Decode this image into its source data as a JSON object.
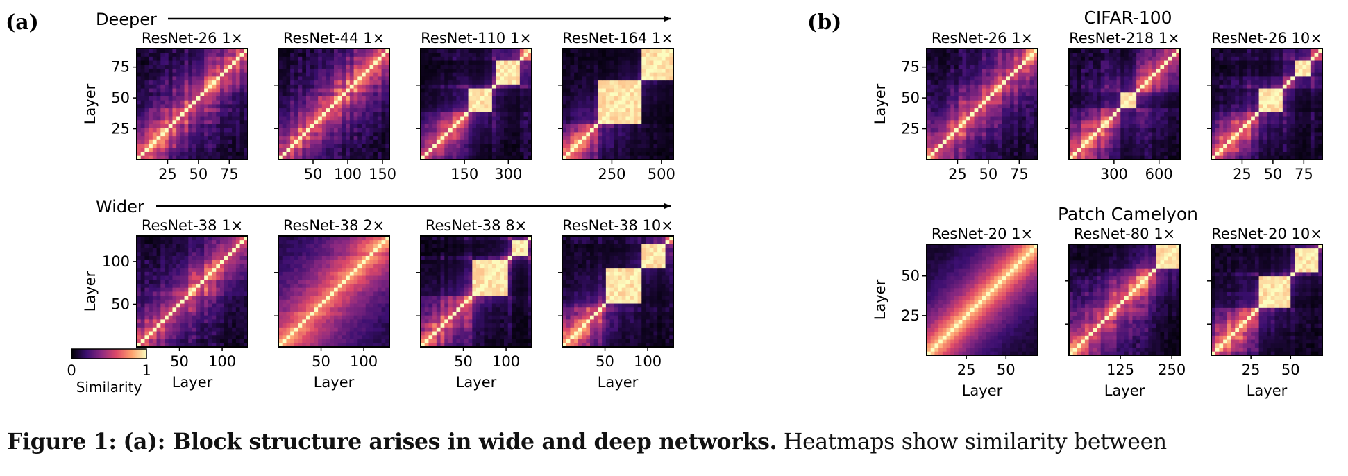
{
  "figure": {
    "panel_a_label": "(a)",
    "panel_b_label": "(b)",
    "deeper_label": "Deeper",
    "wider_label": "Wider",
    "cifar_title": "CIFAR-100",
    "pcam_title": "Patch Camelyon",
    "colorbar": {
      "min_label": "0",
      "max_label": "1",
      "label": "Similarity"
    }
  },
  "caption": {
    "figure_label": "Figure 1:",
    "bold_text": "(a): Block structure arises in wide and deep networks.",
    "text": "Heatmaps show similarity between"
  },
  "chart_data": [
    {
      "type": "heatmap",
      "title": "ResNet-26 1×",
      "ylabel": "Layer",
      "xlabel": "",
      "x_ticks": [
        "25",
        "50",
        "75"
      ],
      "y_ticks": [
        "25",
        "50",
        "75"
      ],
      "n_layers": 90,
      "colorscale": [
        "#000004",
        "#3b0f70",
        "#8c2981",
        "#de4968",
        "#fe9f6d",
        "#fcfdbf"
      ],
      "vmin": 0,
      "vmax": 1
    },
    {
      "type": "heatmap",
      "title": "ResNet-44 1×",
      "ylabel": "",
      "xlabel": "",
      "x_ticks": [
        "50",
        "100",
        "150"
      ],
      "y_ticks": [],
      "n_layers": 160
    },
    {
      "type": "heatmap",
      "title": "ResNet-110 1×",
      "ylabel": "",
      "xlabel": "",
      "x_ticks": [
        "150",
        "300"
      ],
      "y_ticks": [],
      "n_layers": 380
    },
    {
      "type": "heatmap",
      "title": "ResNet-164 1×",
      "ylabel": "",
      "xlabel": "",
      "x_ticks": [
        "250",
        "500"
      ],
      "y_ticks": [],
      "n_layers": 560
    },
    {
      "type": "heatmap",
      "title": "ResNet-38 1×",
      "ylabel": "Layer",
      "xlabel": "Layer",
      "x_ticks": [
        "50",
        "100"
      ],
      "y_ticks": [
        "50",
        "100"
      ],
      "n_layers": 130
    },
    {
      "type": "heatmap",
      "title": "ResNet-38 2×",
      "ylabel": "",
      "xlabel": "Layer",
      "x_ticks": [
        "50",
        "100"
      ],
      "y_ticks": [],
      "n_layers": 130
    },
    {
      "type": "heatmap",
      "title": "ResNet-38 8×",
      "ylabel": "",
      "xlabel": "Layer",
      "x_ticks": [
        "50",
        "100"
      ],
      "y_ticks": [],
      "n_layers": 130
    },
    {
      "type": "heatmap",
      "title": "ResNet-38 10×",
      "ylabel": "",
      "xlabel": "Layer",
      "x_ticks": [
        "50",
        "100"
      ],
      "y_ticks": [],
      "n_layers": 130
    },
    {
      "type": "heatmap",
      "title": "ResNet-26 1×",
      "ylabel": "Layer",
      "xlabel": "",
      "x_ticks": [
        "25",
        "50",
        "75"
      ],
      "y_ticks": [
        "25",
        "50",
        "75"
      ],
      "n_layers": 90
    },
    {
      "type": "heatmap",
      "title": "ResNet-218 1×",
      "ylabel": "",
      "xlabel": "",
      "x_ticks": [
        "300",
        "600"
      ],
      "y_ticks": [],
      "n_layers": 740
    },
    {
      "type": "heatmap",
      "title": "ResNet-26 10×",
      "ylabel": "",
      "xlabel": "",
      "x_ticks": [
        "25",
        "50",
        "75"
      ],
      "y_ticks": [],
      "n_layers": 90
    },
    {
      "type": "heatmap",
      "title": "ResNet-20 1×",
      "ylabel": "Layer",
      "xlabel": "Layer",
      "x_ticks": [
        "25",
        "50"
      ],
      "y_ticks": [
        "25",
        "50"
      ],
      "n_layers": 70
    },
    {
      "type": "heatmap",
      "title": "ResNet-80 1×",
      "ylabel": "",
      "xlabel": "Layer",
      "x_ticks": [
        "125",
        "250"
      ],
      "y_ticks": [],
      "n_layers": 270
    },
    {
      "type": "heatmap",
      "title": "ResNet-20 10×",
      "ylabel": "",
      "xlabel": "Layer",
      "x_ticks": [
        "25",
        "50"
      ],
      "y_ticks": [],
      "n_layers": 70
    }
  ]
}
